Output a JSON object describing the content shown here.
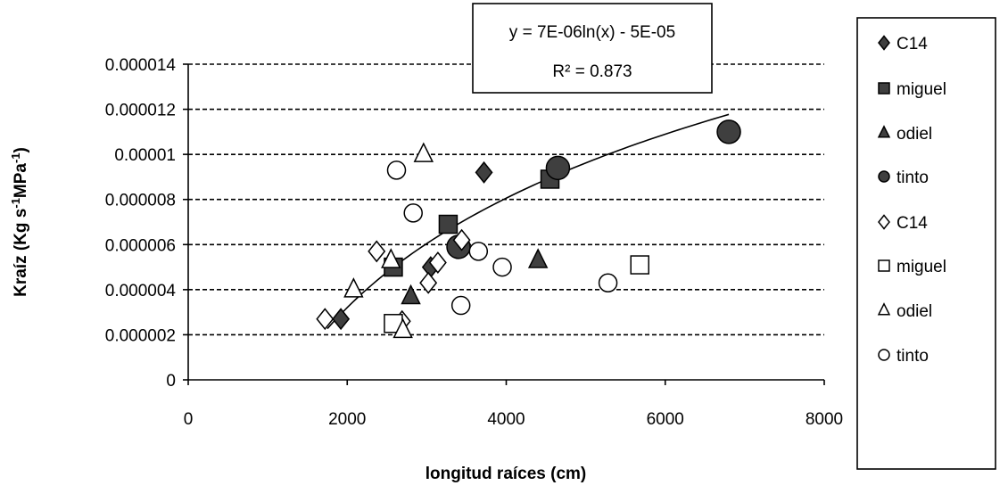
{
  "chart_data": {
    "type": "scatter",
    "xlabel": "longitud raíces (cm)",
    "ylabel": "Kraíz (Kg s-1MPa-1)",
    "ylabel_parts": {
      "pre": "Kraíz (Kg s",
      "sup1": "-1",
      "mid": "MPa",
      "sup2": "-1",
      "post": ")"
    },
    "xlim": [
      0,
      8000
    ],
    "ylim": [
      0,
      1.4e-05
    ],
    "x_ticks": [
      "0",
      "2000",
      "4000",
      "6000",
      "8000"
    ],
    "y_ticks": [
      "0",
      "0.000002",
      "0.000004",
      "0.000006",
      "0.000008",
      "0.00001",
      "0.000012",
      "0.000014"
    ],
    "x_tick_values": [
      0,
      2000,
      4000,
      6000,
      8000
    ],
    "y_tick_values": [
      0,
      2e-06,
      4e-06,
      6e-06,
      8e-06,
      1e-05,
      1.2e-05,
      1.4e-05
    ],
    "grid": true,
    "legend_position": "right",
    "trendline": {
      "type": "logarithmic",
      "a": 7e-06,
      "b": -5e-05,
      "x_range": [
        1750,
        6800
      ],
      "equation": "y = 7E-06ln(x)  - 5E-05",
      "r_squared": "R² = 0.873"
    },
    "series": [
      {
        "name": "C14",
        "marker": "diamond",
        "filled": true,
        "large": false,
        "points": [
          [
            1920,
            2.7e-06
          ],
          [
            3050,
            5e-06
          ],
          [
            3720,
            9.2e-06
          ]
        ]
      },
      {
        "name": "miguel",
        "marker": "square",
        "filled": true,
        "large": false,
        "points": [
          [
            2580,
            5e-06
          ],
          [
            3270,
            6.9e-06
          ],
          [
            4550,
            8.9e-06
          ]
        ]
      },
      {
        "name": "odiel",
        "marker": "triangle",
        "filled": true,
        "large": false,
        "points": [
          [
            2800,
            3.7e-06
          ],
          [
            4400,
            5.3e-06
          ]
        ]
      },
      {
        "name": "tinto",
        "marker": "circle",
        "filled": true,
        "large": true,
        "points": [
          [
            3400,
            5.9e-06
          ],
          [
            4650,
            9.4e-06
          ],
          [
            6800,
            1.1e-05
          ]
        ]
      },
      {
        "name": "C14",
        "marker": "diamond",
        "filled": false,
        "large": false,
        "points": [
          [
            1720,
            2.7e-06
          ],
          [
            2370,
            5.7e-06
          ],
          [
            2690,
            2.6e-06
          ],
          [
            3020,
            4.3e-06
          ],
          [
            3140,
            5.2e-06
          ],
          [
            3440,
            6.2e-06
          ]
        ]
      },
      {
        "name": "miguel",
        "marker": "square",
        "filled": false,
        "large": false,
        "points": [
          [
            2580,
            2.5e-06
          ],
          [
            5680,
            5.1e-06
          ]
        ]
      },
      {
        "name": "odiel",
        "marker": "triangle",
        "filled": false,
        "large": false,
        "points": [
          [
            2080,
            4e-06
          ],
          [
            2550,
            5.3e-06
          ],
          [
            2700,
            2.2e-06
          ],
          [
            2960,
            1e-05
          ]
        ]
      },
      {
        "name": "tinto",
        "marker": "circle",
        "filled": false,
        "large": false,
        "points": [
          [
            2620,
            9.3e-06
          ],
          [
            2830,
            7.4e-06
          ],
          [
            3430,
            3.3e-06
          ],
          [
            3650,
            5.7e-06
          ],
          [
            3950,
            5e-06
          ],
          [
            5280,
            4.3e-06
          ]
        ]
      }
    ]
  },
  "colors": {
    "filled_marker": "#3f3f3f",
    "outline": "#000000",
    "hollow_fill": "#ffffff",
    "grid": "#000000"
  }
}
